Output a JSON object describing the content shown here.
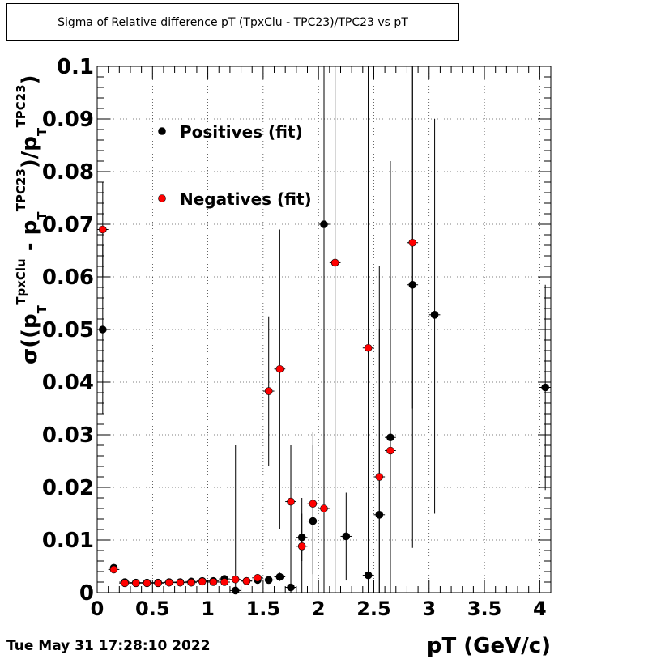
{
  "title": "Sigma of Relative difference pT (TpxClu - TPC23)/TPC23 vs pT",
  "timestamp": "Tue May 31 17:28:10 2022",
  "chart_data": {
    "type": "scatter",
    "title": "Sigma of Relative difference pT (TpxClu - TPC23)/TPC23 vs pT",
    "xlabel": "pT (GeV/c)",
    "ylabel": "σ((p_T^TpxClu - p_T^TPC23)/p_T^TPC23)",
    "ylabel_parts": {
      "sigma": "σ((p",
      "sub1": "T",
      "sup1": "TpxClu",
      "minus": " - p",
      "sub2": "T",
      "sup2": "TPC23",
      "close": ")/p",
      "sub3": "T",
      "sup3": "TPC23",
      "end": ")"
    },
    "xlim": [
      0,
      4.1
    ],
    "ylim": [
      0,
      0.1
    ],
    "x_ticks": [
      {
        "v": 0,
        "label": "0"
      },
      {
        "v": 0.5,
        "label": "0.5"
      },
      {
        "v": 1,
        "label": "1"
      },
      {
        "v": 1.5,
        "label": "1.5"
      },
      {
        "v": 2,
        "label": "2"
      },
      {
        "v": 2.5,
        "label": "2.5"
      },
      {
        "v": 3,
        "label": "3"
      },
      {
        "v": 3.5,
        "label": "3.5"
      },
      {
        "v": 4,
        "label": "4"
      }
    ],
    "y_ticks": [
      {
        "v": 0,
        "label": "0"
      },
      {
        "v": 0.01,
        "label": "0.01"
      },
      {
        "v": 0.02,
        "label": "0.02"
      },
      {
        "v": 0.03,
        "label": "0.03"
      },
      {
        "v": 0.04,
        "label": "0.04"
      },
      {
        "v": 0.05,
        "label": "0.05"
      },
      {
        "v": 0.06,
        "label": "0.06"
      },
      {
        "v": 0.07,
        "label": "0.07"
      },
      {
        "v": 0.08,
        "label": "0.08"
      },
      {
        "v": 0.09,
        "label": "0.09"
      },
      {
        "v": 0.1,
        "label": "0.1"
      }
    ],
    "grid": true,
    "legend_position": "top-left",
    "series": [
      {
        "name": "Positives (fit)",
        "color": "#000000",
        "points": [
          {
            "x": 0.05,
            "y": 0.05,
            "ylo": 0.034,
            "yhi": 0.066
          },
          {
            "x": 0.15,
            "y": 0.0047,
            "ylo": 0.0042,
            "yhi": 0.0052
          },
          {
            "x": 0.25,
            "y": 0.002,
            "ylo": 0.0018,
            "yhi": 0.0022
          },
          {
            "x": 0.35,
            "y": 0.0019,
            "ylo": 0.0017,
            "yhi": 0.0021
          },
          {
            "x": 0.45,
            "y": 0.0019,
            "ylo": 0.0017,
            "yhi": 0.0021
          },
          {
            "x": 0.55,
            "y": 0.0019,
            "ylo": 0.0017,
            "yhi": 0.0021
          },
          {
            "x": 0.65,
            "y": 0.002,
            "ylo": 0.0018,
            "yhi": 0.0022
          },
          {
            "x": 0.75,
            "y": 0.002,
            "ylo": 0.0018,
            "yhi": 0.0022
          },
          {
            "x": 0.85,
            "y": 0.0021,
            "ylo": 0.0019,
            "yhi": 0.0023
          },
          {
            "x": 0.95,
            "y": 0.0022,
            "ylo": 0.0019,
            "yhi": 0.0025
          },
          {
            "x": 1.05,
            "y": 0.0022,
            "ylo": 0.0019,
            "yhi": 0.0025
          },
          {
            "x": 1.15,
            "y": 0.0026,
            "ylo": 0.0022,
            "yhi": 0.003
          },
          {
            "x": 1.25,
            "y": 0.0004,
            "ylo": 0.0,
            "yhi": 0.028
          },
          {
            "x": 1.35,
            "y": 0.0022,
            "ylo": 0.0018,
            "yhi": 0.0026
          },
          {
            "x": 1.45,
            "y": 0.0024,
            "ylo": 0.0018,
            "yhi": 0.003
          },
          {
            "x": 1.55,
            "y": 0.0024,
            "ylo": 0.0018,
            "yhi": 0.003
          },
          {
            "x": 1.65,
            "y": 0.003,
            "ylo": 0.0022,
            "yhi": 0.0038
          },
          {
            "x": 1.75,
            "y": 0.001,
            "ylo": 0.0,
            "yhi": 0.028
          },
          {
            "x": 1.85,
            "y": 0.0105,
            "ylo": 0.006,
            "yhi": 0.015
          },
          {
            "x": 1.95,
            "y": 0.0136,
            "ylo": 0.0,
            "yhi": 0.028
          },
          {
            "x": 2.05,
            "y": 0.07,
            "ylo": 0.0,
            "yhi": 0.1
          },
          {
            "x": 2.25,
            "y": 0.0107,
            "ylo": 0.0023,
            "yhi": 0.019
          },
          {
            "x": 2.45,
            "y": 0.0033,
            "ylo": 0.0,
            "yhi": 0.1
          },
          {
            "x": 2.55,
            "y": 0.0148,
            "ylo": 0.0,
            "yhi": 0.062
          },
          {
            "x": 2.65,
            "y": 0.0295,
            "ylo": 0.0,
            "yhi": 0.082
          },
          {
            "x": 2.85,
            "y": 0.0585,
            "ylo": 0.0085,
            "yhi": 0.1
          },
          {
            "x": 3.05,
            "y": 0.0528,
            "ylo": 0.015,
            "yhi": 0.09
          },
          {
            "x": 4.05,
            "y": 0.039,
            "ylo": 0.0195,
            "yhi": 0.0585
          }
        ]
      },
      {
        "name": "Negatives (fit)",
        "color": "#ff0000",
        "points": [
          {
            "x": 0.05,
            "y": 0.069,
            "ylo": 0.06,
            "yhi": 0.078
          },
          {
            "x": 0.15,
            "y": 0.0044,
            "ylo": 0.0039,
            "yhi": 0.0049
          },
          {
            "x": 0.25,
            "y": 0.0018,
            "ylo": 0.0016,
            "yhi": 0.002
          },
          {
            "x": 0.35,
            "y": 0.0018,
            "ylo": 0.0016,
            "yhi": 0.002
          },
          {
            "x": 0.45,
            "y": 0.0018,
            "ylo": 0.0016,
            "yhi": 0.002
          },
          {
            "x": 0.55,
            "y": 0.0018,
            "ylo": 0.0016,
            "yhi": 0.002
          },
          {
            "x": 0.65,
            "y": 0.0019,
            "ylo": 0.0017,
            "yhi": 0.0021
          },
          {
            "x": 0.75,
            "y": 0.0019,
            "ylo": 0.0017,
            "yhi": 0.0021
          },
          {
            "x": 0.85,
            "y": 0.0019,
            "ylo": 0.0017,
            "yhi": 0.0021
          },
          {
            "x": 0.95,
            "y": 0.0021,
            "ylo": 0.0018,
            "yhi": 0.0024
          },
          {
            "x": 1.05,
            "y": 0.002,
            "ylo": 0.0017,
            "yhi": 0.0023
          },
          {
            "x": 1.15,
            "y": 0.002,
            "ylo": 0.0017,
            "yhi": 0.0023
          },
          {
            "x": 1.25,
            "y": 0.0025,
            "ylo": 0.0021,
            "yhi": 0.0029
          },
          {
            "x": 1.35,
            "y": 0.0022,
            "ylo": 0.0018,
            "yhi": 0.0026
          },
          {
            "x": 1.45,
            "y": 0.0028,
            "ylo": 0.0022,
            "yhi": 0.0034
          },
          {
            "x": 1.55,
            "y": 0.0383,
            "ylo": 0.024,
            "yhi": 0.0525
          },
          {
            "x": 1.65,
            "y": 0.0425,
            "ylo": 0.012,
            "yhi": 0.069
          },
          {
            "x": 1.75,
            "y": 0.0173,
            "ylo": 0.0,
            "yhi": 0.028
          },
          {
            "x": 1.85,
            "y": 0.0088,
            "ylo": 0.0,
            "yhi": 0.018
          },
          {
            "x": 1.95,
            "y": 0.0169,
            "ylo": 0.0035,
            "yhi": 0.0305
          },
          {
            "x": 2.05,
            "y": 0.016,
            "ylo": 0.0,
            "yhi": 0.1
          },
          {
            "x": 2.15,
            "y": 0.0627,
            "ylo": 0.0,
            "yhi": 0.1
          },
          {
            "x": 2.45,
            "y": 0.0465,
            "ylo": 0.0,
            "yhi": 0.1
          },
          {
            "x": 2.55,
            "y": 0.022,
            "ylo": 0.0,
            "yhi": 0.05
          },
          {
            "x": 2.65,
            "y": 0.027,
            "ylo": 0.0,
            "yhi": 0.06
          },
          {
            "x": 2.85,
            "y": 0.0665,
            "ylo": 0.035,
            "yhi": 0.1
          }
        ]
      }
    ]
  }
}
